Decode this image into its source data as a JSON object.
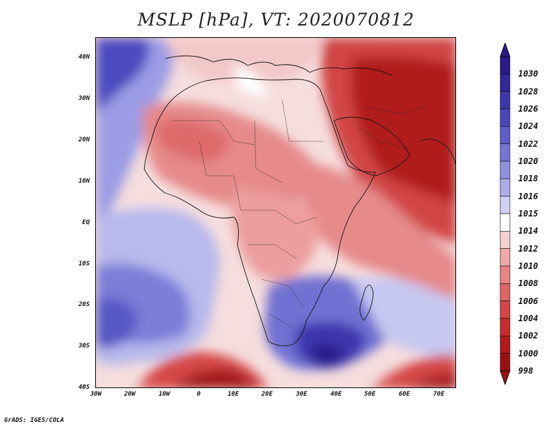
{
  "title": "MSLP [hPa], VT: 2020070812",
  "credit": "GrADS: IGES/COLA",
  "map": {
    "lat_labels": [
      "40N",
      "30N",
      "20N",
      "10N",
      "EQ",
      "10S",
      "20S",
      "30S",
      "40S"
    ],
    "lon_labels": [
      "30W",
      "20W",
      "10W",
      "0",
      "10E",
      "20E",
      "30E",
      "40E",
      "50E",
      "60E",
      "70E"
    ],
    "regions": [
      "africa-landmass",
      "arabian-peninsula",
      "madagascar",
      "southern-high",
      "mediterranean-sea"
    ]
  },
  "colorbar": {
    "labels": [
      "1030",
      "1028",
      "1026",
      "1024",
      "1022",
      "1020",
      "1018",
      "1016",
      "1015",
      "1014",
      "1012",
      "1010",
      "1008",
      "1006",
      "1004",
      "1002",
      "1000",
      "998"
    ],
    "colors": [
      "#2a1a8a",
      "#33279b",
      "#3d36ad",
      "#4a46bb",
      "#5c5fcb",
      "#7476d6",
      "#8f91e0",
      "#adaee9",
      "#cfd0f3",
      "#ffffff",
      "#f6d0d0",
      "#f0a9a9",
      "#e98585",
      "#df6464",
      "#d64646",
      "#c92c2c",
      "#b41a1a",
      "#9a1010"
    ]
  }
}
